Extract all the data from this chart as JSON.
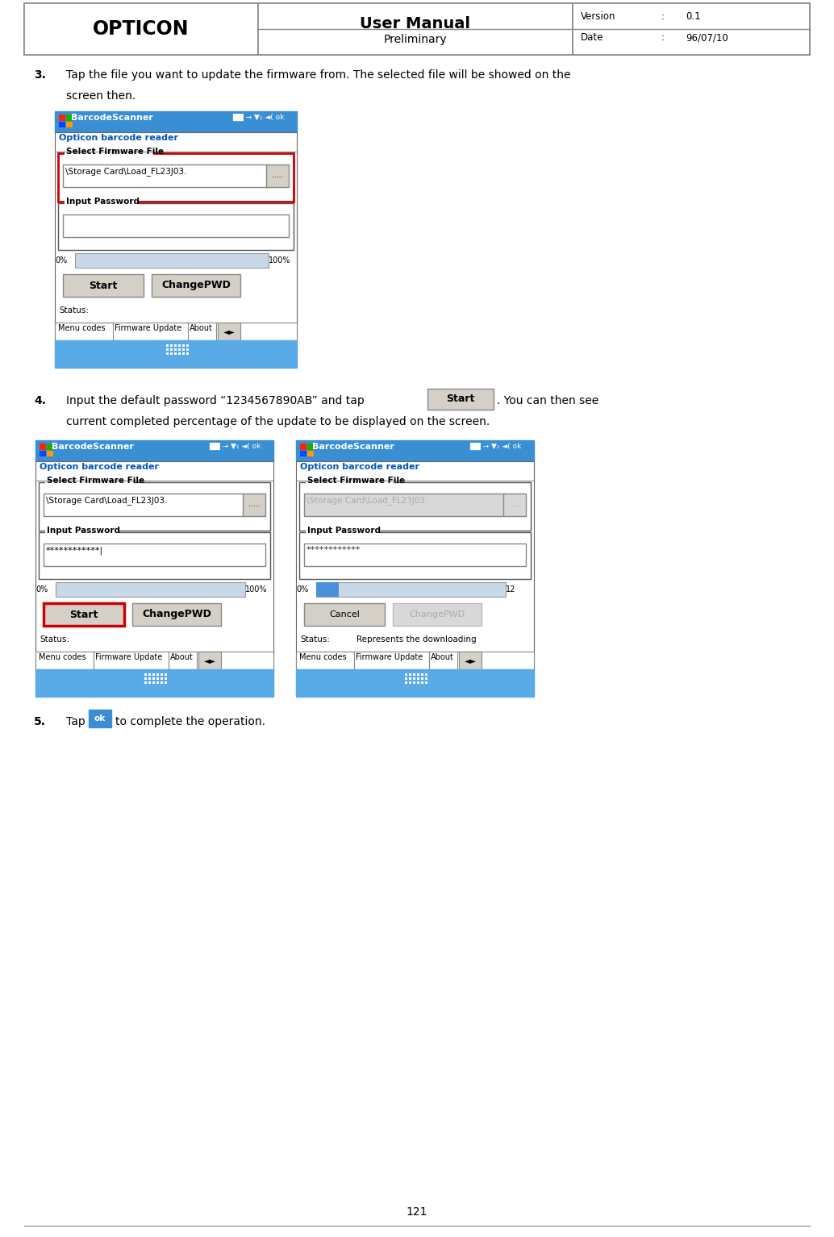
{
  "page_width": 10.34,
  "page_height": 15.34,
  "dpi": 100,
  "bg_color": "#ffffff",
  "header": {
    "opticon_text": "OPTICON",
    "title_top": "User Manual",
    "title_bottom": "Preliminary",
    "version_label": "Version",
    "version_colon": ":",
    "version_value": "0.1",
    "date_label": "Date",
    "date_colon": ":",
    "date_value": "96/07/10"
  },
  "step3_number": "3.",
  "step3_text1": "Tap the file you want to update the firmware from. The selected file will be showed on the",
  "step3_text2": "screen then.",
  "step4_number": "4.",
  "step4_text1": "Input the default password “1234567890AB” and tap",
  "step4_text2": ". You can then see",
  "step4_text3": "current completed percentage of the update to be displayed on the screen.",
  "step5_number": "5.",
  "step5_text1": "Tap",
  "step5_text2": "to complete the operation.",
  "page_number": "121",
  "blue_bar_color": "#3a8fd4",
  "blue_taskbar_color": "#3a8fd4",
  "blue_kbd_color": "#5aaae8",
  "blue_bar_text_color": "#ffffff",
  "red_border_color": "#cc0000",
  "opticon_link_color": "#0055bb",
  "button_bg": "#d4d0c8",
  "progress_bg": "#c8d8e8",
  "progress_fill": "#4a90d9",
  "input_bg": "#ffffff",
  "disabled_bg": "#d8d8d8",
  "disabled_text": "#aaaaaa",
  "text_color": "#000000",
  "header_border": "#888888",
  "screen_border": "#666666",
  "group_border": "#555555"
}
